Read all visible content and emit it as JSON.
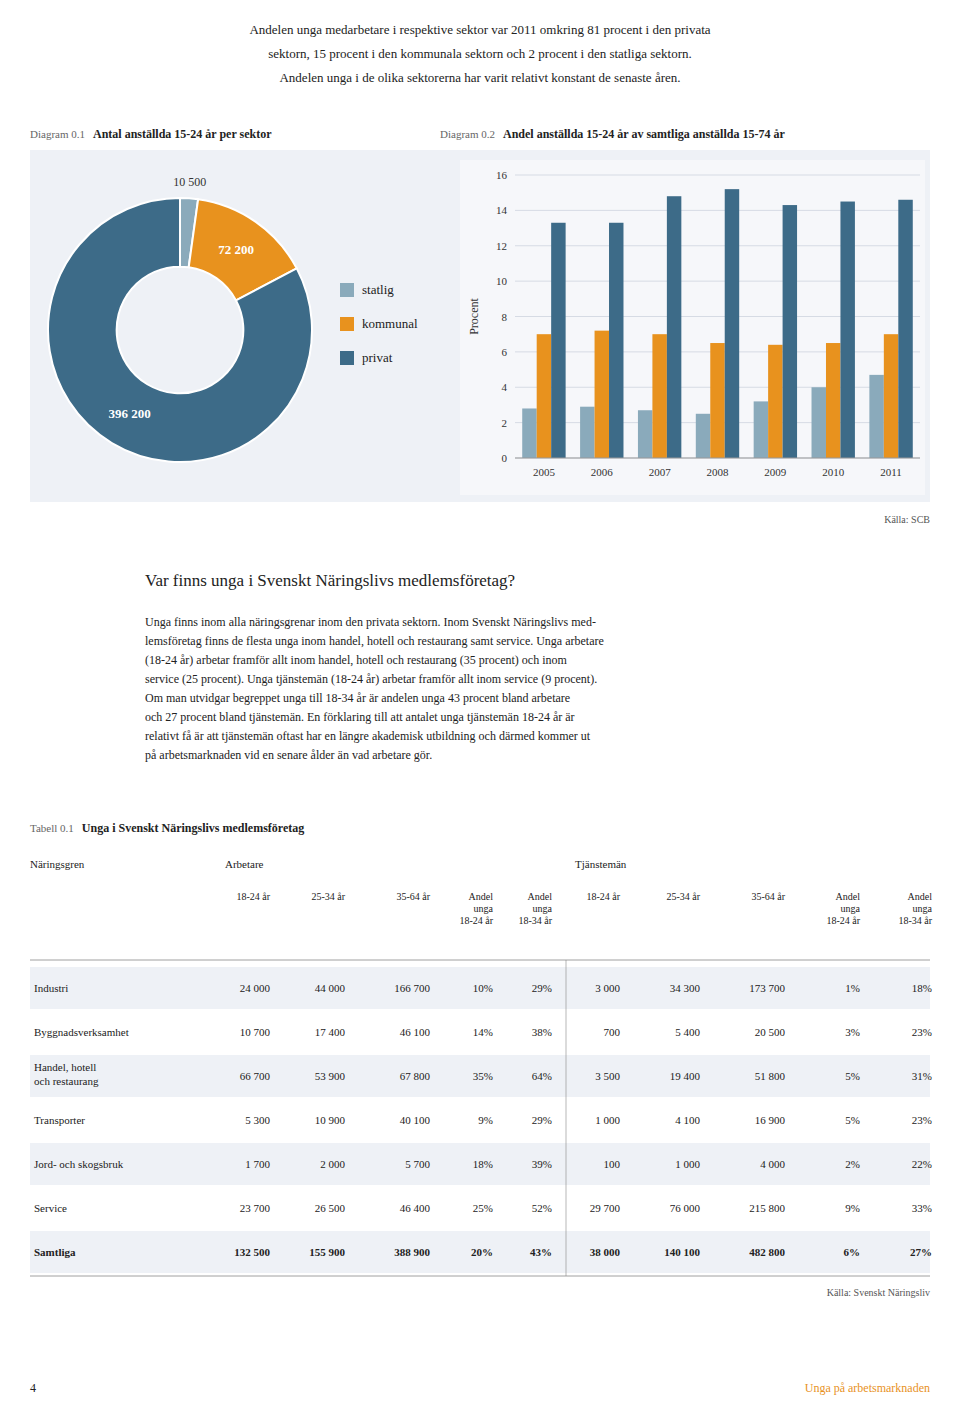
{
  "page": {
    "intro_lines": [
      "Andelen unga medarbetare i respektive sektor var 2011 omkring 81 procent i den privata",
      "sektorn, 15 procent i den kommunala sektorn och 2 procent i den statliga sektorn.",
      "Andelen unga i de olika sektorerna har varit relativt konstant de senaste åren."
    ],
    "source": "Källa: SCB",
    "section_heading": "Var finns unga i Svenskt Näringslivs medlemsföretag?",
    "section_body": "Unga finns inom alla näringsgrenar inom den privata sektorn. Inom Svenskt Näringslivs med-\nlemsföretag finns de flesta unga inom handel, hotell och restaurang samt service. Unga arbetare\n(18-24 år) arbetar framför allt inom handel, hotell och restaurang (35 procent) och inom\nservice (25 procent). Unga tjänstemän (18-24 år) arbetar framför allt inom service (9 procent).\nOm man utvidgar begreppet unga till 18-34 år är andelen unga 43 procent bland arbetare\noch 27 procent bland tjänstemän. En förklaring till att antalet unga tjänstemän 18-24 år är\nrelativt få är att tjänstemän oftast har en längre akademisk utbildning och därmed kommer ut\npå arbetsmarknaden vid en senare ålder än vad arbetare gör.",
    "footer_num": "4",
    "footer_text": "Unga på arbetsmarknaden",
    "footer_color": "#e8921e"
  },
  "chart_data": [
    {
      "type": "pie",
      "label": "Diagram 0.1",
      "title": "Antal anställda 15-24 år per sektor",
      "categories": [
        "statlig",
        "kommunal",
        "privat"
      ],
      "values": [
        10500,
        72200,
        396200
      ],
      "value_labels": [
        "10 500",
        "72 200",
        "396 200"
      ],
      "colors": [
        "#8aaabb",
        "#e8921e",
        "#3d6b88"
      ],
      "data_labels": true,
      "legend": "right"
    },
    {
      "type": "bar",
      "label": "Diagram 0.2",
      "title": "Andel anställda 15-24 år av samtliga anställda 15-74 år",
      "categories": [
        "2005",
        "2006",
        "2007",
        "2008",
        "2009",
        "2010",
        "2011"
      ],
      "series": [
        {
          "name": "statlig",
          "color": "#8aaabb",
          "values": [
            2.8,
            2.9,
            2.7,
            2.5,
            3.2,
            4.0,
            4.7
          ]
        },
        {
          "name": "kommunal",
          "color": "#e8921e",
          "values": [
            7.0,
            7.2,
            7.0,
            6.5,
            6.4,
            6.5,
            7.0
          ]
        },
        {
          "name": "privat",
          "color": "#3d6b88",
          "values": [
            13.3,
            13.3,
            14.8,
            15.2,
            14.3,
            14.5,
            14.6
          ]
        }
      ],
      "y_label": "Procent",
      "ylim": [
        0,
        16
      ],
      "yticks": [
        0,
        2,
        4,
        6,
        8,
        10,
        12,
        14,
        16
      ],
      "grid": true
    },
    {
      "type": "table",
      "label": "Tabell 0.1",
      "title": "Unga i Svenskt Näringslivs medlemsföretag",
      "row_header": "Näringsgren",
      "groups": [
        "Arbetare",
        "Tjänstemän"
      ],
      "categories": [
        "Industri",
        "Byggnadsverksamhet",
        "Handel, hotell\noch restaurang",
        "Transporter",
        "Jord- och skogsbruk",
        "Service",
        "Samtliga"
      ],
      "series": [
        {
          "name": "18-24 år",
          "group": "Arbetare",
          "values": [
            24000,
            10700,
            66700,
            5300,
            1700,
            23700,
            132500
          ],
          "value_labels": [
            "24 000",
            "10 700",
            "66 700",
            "5 300",
            "1 700",
            "23 700",
            "132 500"
          ]
        },
        {
          "name": "25-34 år",
          "group": "Arbetare",
          "values": [
            44000,
            17400,
            53900,
            10900,
            2000,
            26500,
            155900
          ],
          "value_labels": [
            "44 000",
            "17 400",
            "53 900",
            "10 900",
            "2 000",
            "26 500",
            "155 900"
          ]
        },
        {
          "name": "35-64 år",
          "group": "Arbetare",
          "values": [
            166700,
            46100,
            67800,
            40100,
            5700,
            46400,
            388900
          ],
          "value_labels": [
            "166 700",
            "46 100",
            "67 800",
            "40 100",
            "5 700",
            "46 400",
            "388 900"
          ]
        },
        {
          "name": "Andel\nunga\n18-24 år",
          "group": "Arbetare",
          "values": [
            10,
            14,
            35,
            9,
            18,
            25,
            20
          ],
          "value_labels": [
            "10%",
            "14%",
            "35%",
            "9%",
            "18%",
            "25%",
            "20%"
          ]
        },
        {
          "name": "Andel\nunga\n18-34 år",
          "group": "Arbetare",
          "values": [
            29,
            38,
            64,
            29,
            39,
            52,
            43
          ],
          "value_labels": [
            "29%",
            "38%",
            "64%",
            "29%",
            "39%",
            "52%",
            "43%"
          ]
        },
        {
          "name": "18-24 år",
          "group": "Tjänstemän",
          "values": [
            3000,
            700,
            3500,
            1000,
            100,
            29700,
            38000
          ],
          "value_labels": [
            "3 000",
            "700",
            "3 500",
            "1 000",
            "100",
            "29 700",
            "38 000"
          ]
        },
        {
          "name": "25-34 år",
          "group": "Tjänstemän",
          "values": [
            34300,
            5400,
            19400,
            4100,
            1000,
            76000,
            140100
          ],
          "value_labels": [
            "34 300",
            "5 400",
            "19 400",
            "4 100",
            "1 000",
            "76 000",
            "140 100"
          ]
        },
        {
          "name": "35-64 år",
          "group": "Tjänstemän",
          "values": [
            173700,
            20500,
            51800,
            16900,
            4000,
            215800,
            482800
          ],
          "value_labels": [
            "173 700",
            "20 500",
            "51 800",
            "16 900",
            "4 000",
            "215 800",
            "482 800"
          ]
        },
        {
          "name": "Andel\nunga\n18-24 år",
          "group": "Tjänstemän",
          "values": [
            1,
            3,
            5,
            5,
            2,
            9,
            6
          ],
          "value_labels": [
            "1%",
            "3%",
            "5%",
            "5%",
            "2%",
            "9%",
            "6%"
          ]
        },
        {
          "name": "Andel\nunga\n18-34 år",
          "group": "Tjänstemän",
          "values": [
            18,
            23,
            31,
            23,
            22,
            33,
            27
          ],
          "value_labels": [
            "18%",
            "23%",
            "31%",
            "23%",
            "22%",
            "33%",
            "27%"
          ]
        }
      ],
      "source": "Källa: Svenskt Näringsliv"
    }
  ]
}
